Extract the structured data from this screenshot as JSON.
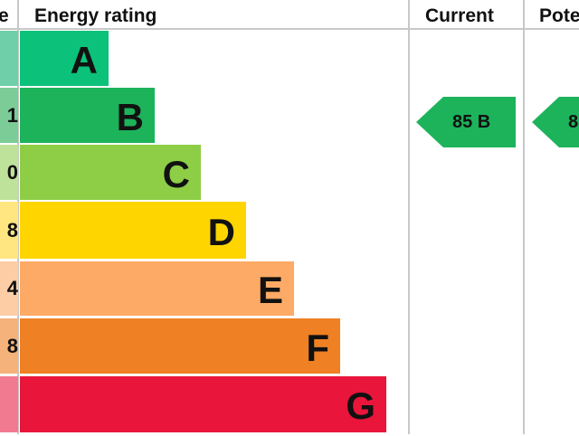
{
  "chart_data": {
    "type": "bar",
    "headers": {
      "score": "e",
      "rating": "Energy rating",
      "current": "Current",
      "potential": "Pote"
    },
    "bands": [
      {
        "letter": "A",
        "score_visible": "",
        "color": "#0cc17a",
        "score_color": "#6fcfa9"
      },
      {
        "letter": "B",
        "score_visible": "1",
        "color": "#1db35a",
        "score_color": "#7ccc97"
      },
      {
        "letter": "C",
        "score_visible": "0",
        "color": "#8dce46",
        "score_color": "#bfe29a"
      },
      {
        "letter": "D",
        "score_visible": "8",
        "color": "#ffd500",
        "score_color": "#ffe680"
      },
      {
        "letter": "E",
        "score_visible": "4",
        "color": "#fcaa65",
        "score_color": "#fdcda5"
      },
      {
        "letter": "F",
        "score_visible": "8",
        "color": "#ef8023",
        "score_color": "#f5b27a"
      },
      {
        "letter": "G",
        "score_visible": "",
        "color": "#e9153b",
        "score_color": "#f27a90"
      }
    ],
    "current": {
      "label": "85 B",
      "value": 85,
      "band": "B",
      "color": "#1db35a"
    },
    "potential": {
      "label": "8",
      "band": "B",
      "color": "#1db35a"
    }
  }
}
